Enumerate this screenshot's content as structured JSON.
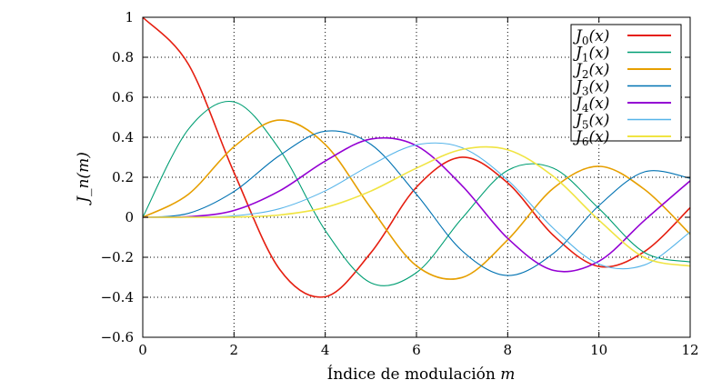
{
  "chart_data": {
    "type": "line",
    "xlabel_prefix": "Índice de modulación ",
    "xlabel_var": "m",
    "ylabel": "J_n(m)",
    "ylabel_main": "J",
    "ylabel_sub": "n",
    "ylabel_arg": "(m)",
    "xlim": [
      0,
      12
    ],
    "ylim": [
      -0.6,
      1
    ],
    "xticks": [
      0,
      2,
      4,
      6,
      8,
      10,
      12
    ],
    "yticks": [
      -0.6,
      -0.4,
      -0.2,
      0,
      0.2,
      0.4,
      0.6,
      0.8,
      1
    ],
    "xtick_labels": [
      "0",
      "2",
      "4",
      "6",
      "8",
      "10",
      "12"
    ],
    "ytick_labels": [
      "−0.6",
      "−0.4",
      "−0.2",
      "0",
      "0.2",
      "0.4",
      "0.6",
      "0.8",
      "1"
    ],
    "grid": true,
    "legend_position": "top-right",
    "x": [
      0,
      1,
      2,
      3,
      4,
      5,
      6,
      7,
      8,
      9,
      10,
      11,
      12
    ],
    "series": [
      {
        "name": "J0(x)",
        "main": "J",
        "sub": "0",
        "arg": "(x)",
        "color": "#e51e10",
        "values": [
          1,
          0.7652,
          0.2239,
          -0.2601,
          -0.3971,
          -0.1776,
          0.1506,
          0.3001,
          0.1717,
          -0.0903,
          -0.2459,
          -0.1712,
          0.0477
        ]
      },
      {
        "name": "J1(x)",
        "main": "J",
        "sub": "1",
        "arg": "(x)",
        "color": "#009e73",
        "values": [
          0,
          0.4401,
          0.5767,
          0.3391,
          -0.066,
          -0.3276,
          -0.2767,
          -0.0047,
          0.2346,
          0.2453,
          0.0435,
          -0.1768,
          -0.2234
        ]
      },
      {
        "name": "J2(x)",
        "main": "J",
        "sub": "2",
        "arg": "(x)",
        "color": "#e69f00",
        "values": [
          0,
          0.1149,
          0.3528,
          0.4861,
          0.3641,
          0.0466,
          -0.2429,
          -0.3014,
          -0.113,
          0.1448,
          0.2546,
          0.139,
          -0.0849
        ]
      },
      {
        "name": "J3(x)",
        "main": "J",
        "sub": "3",
        "arg": "(x)",
        "color": "#0072b2",
        "values": [
          0,
          0.0196,
          0.1289,
          0.3091,
          0.4302,
          0.3648,
          0.1148,
          -0.1676,
          -0.2911,
          -0.1809,
          0.0584,
          0.2273,
          0.1951
        ]
      },
      {
        "name": "J4(x)",
        "main": "J",
        "sub": "4",
        "arg": "(x)",
        "color": "#9400d3",
        "values": [
          0,
          0.0025,
          0.034,
          0.132,
          0.2811,
          0.3912,
          0.3576,
          0.1578,
          -0.1054,
          -0.2655,
          -0.2196,
          -0.015,
          0.1825
        ]
      },
      {
        "name": "J5(x)",
        "main": "J",
        "sub": "5",
        "arg": "(x)",
        "color": "#56b4e9",
        "values": [
          0,
          0.0002,
          0.007,
          0.043,
          0.1321,
          0.2611,
          0.3621,
          0.3479,
          0.1858,
          -0.055,
          -0.2341,
          -0.2383,
          -0.0735
        ]
      },
      {
        "name": "J6(x)",
        "main": "J",
        "sub": "6",
        "arg": "(x)",
        "color": "#f0e442",
        "values": [
          0,
          0.0,
          0.0012,
          0.0114,
          0.0491,
          0.131,
          0.2458,
          0.3392,
          0.3376,
          0.2043,
          -0.0145,
          -0.2016,
          -0.2437
        ]
      }
    ]
  }
}
